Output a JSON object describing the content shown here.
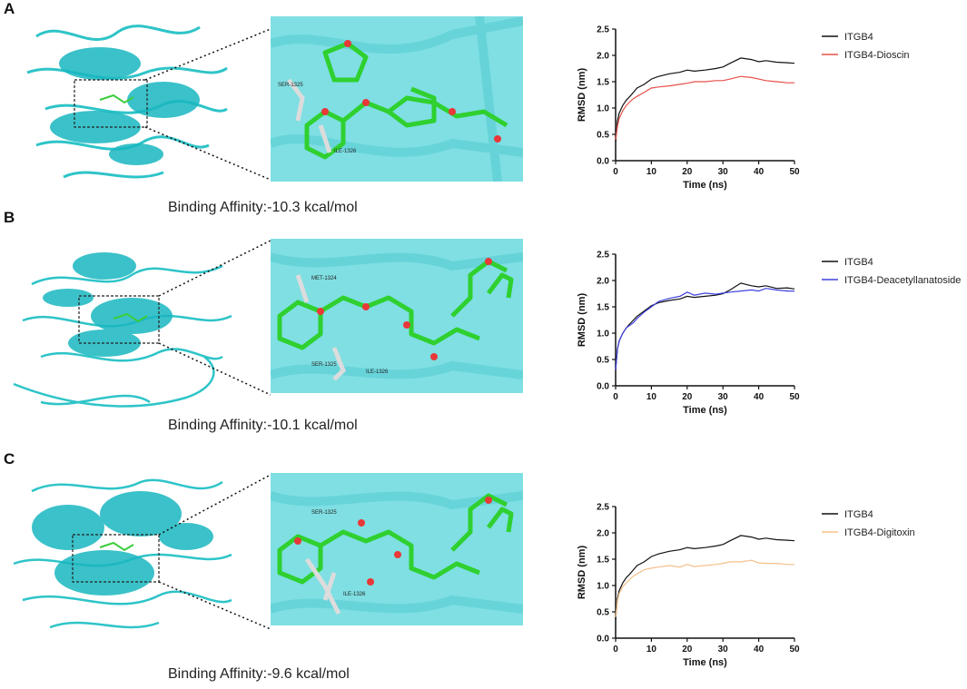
{
  "panels": [
    {
      "letter": "A",
      "caption": "Binding Affinity:-10.3 kcal/mol",
      "residues": [
        "SER-1325",
        "ILE-1326"
      ],
      "chart_data": {
        "type": "line",
        "xlabel": "Time (ns)",
        "ylabel": "RMSD (nm)",
        "xlim": [
          0,
          50
        ],
        "ylim": [
          0,
          2.5
        ],
        "xticks": [
          "0",
          "10",
          "20",
          "30",
          "40",
          "50"
        ],
        "yticks": [
          "0.0",
          "0.5",
          "1.0",
          "1.5",
          "2.0",
          "2.5"
        ],
        "legend_position": "right",
        "series": [
          {
            "name": "ITGB4",
            "color": "#111111",
            "x": [
              0,
              0.5,
              1,
              2,
              3,
              4,
              5,
              6,
              8,
              10,
              12,
              15,
              18,
              20,
              22,
              25,
              28,
              30,
              32,
              35,
              38,
              40,
              42,
              45,
              48,
              50
            ],
            "y": [
              0.35,
              0.75,
              0.9,
              1.05,
              1.15,
              1.22,
              1.3,
              1.38,
              1.45,
              1.55,
              1.6,
              1.65,
              1.68,
              1.72,
              1.7,
              1.72,
              1.75,
              1.78,
              1.85,
              1.95,
              1.92,
              1.88,
              1.9,
              1.87,
              1.86,
              1.85
            ]
          },
          {
            "name": "ITGB4-Dioscin",
            "color": "#e8504a",
            "x": [
              0,
              0.5,
              1,
              2,
              3,
              4,
              5,
              6,
              8,
              10,
              12,
              15,
              18,
              20,
              22,
              25,
              28,
              30,
              32,
              35,
              38,
              40,
              42,
              45,
              48,
              50
            ],
            "y": [
              0.4,
              0.65,
              0.8,
              0.95,
              1.05,
              1.12,
              1.18,
              1.22,
              1.3,
              1.38,
              1.4,
              1.42,
              1.45,
              1.47,
              1.5,
              1.5,
              1.52,
              1.52,
              1.55,
              1.6,
              1.58,
              1.55,
              1.52,
              1.5,
              1.48,
              1.48
            ]
          }
        ]
      }
    },
    {
      "letter": "B",
      "caption": "Binding Affinity:-10.1 kcal/mol",
      "residues": [
        "MET-1324",
        "SER-1325",
        "ILE-1326"
      ],
      "chart_data": {
        "type": "line",
        "xlabel": "Time (ns)",
        "ylabel": "RMSD (nm)",
        "xlim": [
          0,
          50
        ],
        "ylim": [
          0,
          2.5
        ],
        "xticks": [
          "0",
          "10",
          "20",
          "30",
          "40",
          "50"
        ],
        "yticks": [
          "0.0",
          "0.5",
          "1.0",
          "1.5",
          "2.0",
          "2.5"
        ],
        "legend_position": "right",
        "series": [
          {
            "name": "ITGB4",
            "color": "#111111",
            "x": [
              0,
              0.5,
              1,
              2,
              3,
              4,
              5,
              6,
              8,
              10,
              12,
              15,
              18,
              20,
              22,
              25,
              28,
              30,
              32,
              35,
              38,
              40,
              42,
              45,
              48,
              50
            ],
            "y": [
              0.3,
              0.7,
              0.85,
              1.0,
              1.1,
              1.18,
              1.25,
              1.32,
              1.42,
              1.52,
              1.58,
              1.62,
              1.65,
              1.7,
              1.68,
              1.7,
              1.72,
              1.75,
              1.82,
              1.95,
              1.9,
              1.88,
              1.9,
              1.85,
              1.86,
              1.84
            ]
          },
          {
            "name": "ITGB4-Deacetyllanatoside C",
            "color": "#4040e0",
            "x": [
              0,
              0.5,
              1,
              2,
              3,
              4,
              5,
              6,
              8,
              10,
              12,
              15,
              18,
              20,
              22,
              25,
              28,
              30,
              32,
              35,
              38,
              40,
              42,
              45,
              48,
              50
            ],
            "y": [
              0.3,
              0.7,
              0.85,
              1.0,
              1.1,
              1.15,
              1.2,
              1.28,
              1.4,
              1.5,
              1.6,
              1.66,
              1.7,
              1.78,
              1.72,
              1.76,
              1.74,
              1.76,
              1.78,
              1.8,
              1.82,
              1.8,
              1.85,
              1.82,
              1.8,
              1.8
            ]
          }
        ]
      }
    },
    {
      "letter": "C",
      "caption": "Binding Affinity:-9.6 kcal/mol",
      "residues": [
        "SER-1325",
        "ILE-1326"
      ],
      "chart_data": {
        "type": "line",
        "xlabel": "Time (ns)",
        "ylabel": "RMSD (nm)",
        "xlim": [
          0,
          50
        ],
        "ylim": [
          0,
          2.5
        ],
        "xticks": [
          "0",
          "10",
          "20",
          "30",
          "40",
          "50"
        ],
        "yticks": [
          "0.0",
          "0.5",
          "1.0",
          "1.5",
          "2.0",
          "2.5"
        ],
        "legend_position": "right",
        "series": [
          {
            "name": "ITGB4",
            "color": "#111111",
            "x": [
              0,
              0.5,
              1,
              2,
              3,
              4,
              5,
              6,
              8,
              10,
              12,
              15,
              18,
              20,
              22,
              25,
              28,
              30,
              32,
              35,
              38,
              40,
              42,
              45,
              48,
              50
            ],
            "y": [
              0.35,
              0.75,
              0.9,
              1.05,
              1.15,
              1.22,
              1.3,
              1.38,
              1.45,
              1.55,
              1.6,
              1.65,
              1.68,
              1.72,
              1.7,
              1.72,
              1.75,
              1.78,
              1.85,
              1.95,
              1.92,
              1.88,
              1.9,
              1.87,
              1.86,
              1.85
            ]
          },
          {
            "name": "ITGB4-Digitoxin",
            "color": "#f5c08a",
            "x": [
              0,
              0.5,
              1,
              2,
              3,
              4,
              5,
              6,
              8,
              10,
              12,
              15,
              18,
              20,
              22,
              25,
              28,
              30,
              32,
              35,
              38,
              40,
              42,
              45,
              48,
              50
            ],
            "y": [
              0.4,
              0.7,
              0.85,
              0.98,
              1.05,
              1.12,
              1.18,
              1.22,
              1.3,
              1.33,
              1.35,
              1.38,
              1.35,
              1.4,
              1.36,
              1.38,
              1.4,
              1.42,
              1.45,
              1.45,
              1.48,
              1.43,
              1.42,
              1.42,
              1.4,
              1.4
            ]
          }
        ]
      }
    }
  ]
}
